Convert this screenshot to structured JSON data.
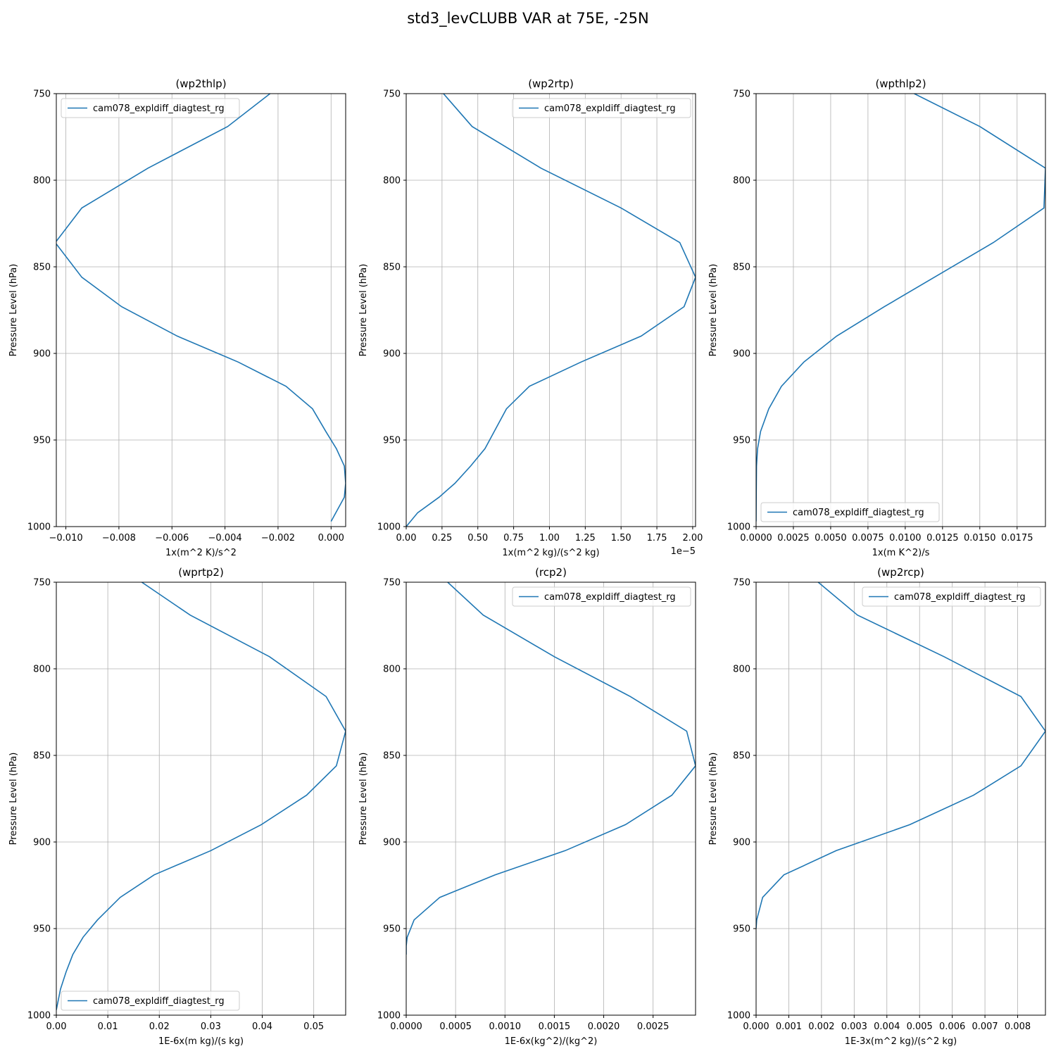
{
  "figure": {
    "title": "std3_levCLUBB VAR at 75E, -25N"
  },
  "chart_data": [
    {
      "type": "line",
      "title": "(wp2thlp)",
      "xlabel": "1x(m^2 K)/s^2",
      "ylabel": "Pressure Level (hPa)",
      "xlim": [
        -0.01036,
        0.00055
      ],
      "ylim": [
        1000,
        750
      ],
      "y_inverted": true,
      "grid": true,
      "legend_position": "upper left",
      "xticks": [
        -0.01,
        -0.008,
        -0.006,
        -0.004,
        -0.002,
        0.0
      ],
      "xtick_labels": [
        "−0.010",
        "−0.008",
        "−0.006",
        "−0.004",
        "−0.002",
        "0.000"
      ],
      "yticks": [
        750,
        800,
        850,
        900,
        950,
        1000
      ],
      "ytick_labels": [
        "750",
        "800",
        "850",
        "900",
        "950",
        "1000"
      ],
      "series": [
        {
          "name": "cam078_expldiff_diagtest_rg",
          "color": "#1f77b4",
          "x": [
            -0.0023,
            -0.0039,
            -0.0069,
            -0.0094,
            -0.0104,
            -0.0094,
            -0.0079,
            -0.0058,
            -0.0035,
            -0.0017,
            -0.0007,
            -0.0002,
            0.0002,
            0.0005,
            0.00055,
            0.0005,
            0.0
          ],
          "y": [
            750,
            769,
            793,
            816,
            836,
            856,
            873,
            890,
            905,
            919,
            932,
            945,
            955,
            965,
            975,
            983,
            997
          ]
        }
      ]
    },
    {
      "type": "line",
      "title": "(wp2rtp)",
      "xlabel": "1x(m^2 kg)/(s^2 kg)",
      "ylabel": "Pressure Level (hPa)",
      "x_offset_label": "1e−5",
      "xlim": [
        0.0,
        2.02
      ],
      "ylim": [
        1000,
        750
      ],
      "y_inverted": true,
      "grid": true,
      "legend_position": "upper right",
      "xticks": [
        0.0,
        0.25,
        0.5,
        0.75,
        1.0,
        1.25,
        1.5,
        1.75,
        2.0
      ],
      "xtick_labels": [
        "0.00",
        "0.25",
        "0.50",
        "0.75",
        "1.00",
        "1.25",
        "1.50",
        "1.75",
        "2.00"
      ],
      "yticks": [
        750,
        800,
        850,
        900,
        950,
        1000
      ],
      "ytick_labels": [
        "750",
        "800",
        "850",
        "900",
        "950",
        "1000"
      ],
      "series": [
        {
          "name": "cam078_expldiff_diagtest_rg",
          "color": "#1f77b4",
          "x": [
            0.26,
            0.46,
            0.94,
            1.5,
            1.91,
            2.02,
            1.94,
            1.64,
            1.22,
            0.86,
            0.7,
            0.55,
            0.45,
            0.34,
            0.23,
            0.08,
            0.0
          ],
          "y": [
            750,
            769,
            793,
            816,
            836,
            856,
            873,
            890,
            905,
            919,
            932,
            955,
            965,
            975,
            983,
            992,
            1000
          ]
        }
      ]
    },
    {
      "type": "line",
      "title": "(wpthlp2)",
      "xlabel": "1x(m K^2)/s",
      "ylabel": "Pressure Level (hPa)",
      "xlim": [
        0.0,
        0.0194
      ],
      "ylim": [
        1000,
        750
      ],
      "y_inverted": true,
      "grid": true,
      "legend_position": "lower left",
      "xticks": [
        0.0,
        0.0025,
        0.005,
        0.0075,
        0.01,
        0.0125,
        0.015,
        0.0175
      ],
      "xtick_labels": [
        "0.0000",
        "0.0025",
        "0.0050",
        "0.0075",
        "0.0100",
        "0.0125",
        "0.0150",
        "0.0175"
      ],
      "yticks": [
        750,
        800,
        850,
        900,
        950,
        1000
      ],
      "ytick_labels": [
        "750",
        "800",
        "850",
        "900",
        "950",
        "1000"
      ],
      "series": [
        {
          "name": "cam078_expldiff_diagtest_rg",
          "color": "#1f77b4",
          "x": [
            0.0106,
            0.015,
            0.0194,
            0.0193,
            0.0159,
            0.0086,
            0.0054,
            0.0032,
            0.0017,
            0.00085,
            0.0003,
            0.0001,
            3e-05,
            1e-05,
            0.0
          ],
          "y": [
            750,
            769,
            793,
            816,
            836,
            873,
            890,
            905,
            919,
            932,
            945,
            955,
            965,
            983,
            997
          ]
        }
      ]
    },
    {
      "type": "line",
      "title": "(wprtp2)",
      "xlabel": "1E-6x(m kg)/(s kg)",
      "ylabel": "Pressure Level (hPa)",
      "xlim": [
        0.0,
        0.0562
      ],
      "ylim": [
        1000,
        750
      ],
      "y_inverted": true,
      "grid": true,
      "legend_position": "lower left",
      "xticks": [
        0.0,
        0.01,
        0.02,
        0.03,
        0.04,
        0.05
      ],
      "xtick_labels": [
        "0.00",
        "0.01",
        "0.02",
        "0.03",
        "0.04",
        "0.05"
      ],
      "yticks": [
        750,
        800,
        850,
        900,
        950,
        1000
      ],
      "ytick_labels": [
        "750",
        "800",
        "850",
        "900",
        "950",
        "1000"
      ],
      "series": [
        {
          "name": "cam078_expldiff_diagtest_rg",
          "color": "#1f77b4",
          "x": [
            0.0166,
            0.026,
            0.0414,
            0.0524,
            0.0562,
            0.0544,
            0.0486,
            0.0398,
            0.03,
            0.019,
            0.0124,
            0.008,
            0.0052,
            0.0032,
            0.0019,
            0.0008,
            0.0
          ],
          "y": [
            750,
            769,
            793,
            816,
            836,
            856,
            873,
            890,
            905,
            919,
            932,
            945,
            955,
            965,
            975,
            985,
            997
          ]
        }
      ]
    },
    {
      "type": "line",
      "title": "(rcp2)",
      "xlabel": "1E-6x(kg^2)/(kg^2)",
      "ylabel": "Pressure Level (hPa)",
      "xlim": [
        0.0,
        0.00293
      ],
      "ylim": [
        1000,
        750
      ],
      "y_inverted": true,
      "grid": true,
      "legend_position": "upper right",
      "xticks": [
        0.0,
        0.0005,
        0.001,
        0.0015,
        0.002,
        0.0025
      ],
      "xtick_labels": [
        "0.0000",
        "0.0005",
        "0.0010",
        "0.0015",
        "0.0020",
        "0.0025"
      ],
      "yticks": [
        750,
        800,
        850,
        900,
        950,
        1000
      ],
      "ytick_labels": [
        "750",
        "800",
        "850",
        "900",
        "950",
        "1000"
      ],
      "series": [
        {
          "name": "cam078_expldiff_diagtest_rg",
          "color": "#1f77b4",
          "x": [
            0.00042,
            0.00078,
            0.0015,
            0.00227,
            0.00284,
            0.00293,
            0.00269,
            0.00222,
            0.00161,
            0.0009,
            0.00034,
            8e-05,
            1e-05,
            0.0,
            0.0
          ],
          "y": [
            750,
            769,
            793,
            816,
            836,
            856,
            873,
            890,
            905,
            919,
            932,
            945,
            955,
            960,
            965
          ]
        }
      ]
    },
    {
      "type": "line",
      "title": "(wp2rcp)",
      "xlabel": "1E-3x(m^2 kg)/(s^2 kg)",
      "ylabel": "Pressure Level (hPa)",
      "xlim": [
        0.0,
        0.00885
      ],
      "ylim": [
        1000,
        750
      ],
      "y_inverted": true,
      "grid": true,
      "legend_position": "upper right",
      "xticks": [
        0.0,
        0.001,
        0.002,
        0.003,
        0.004,
        0.005,
        0.006,
        0.007,
        0.008
      ],
      "xtick_labels": [
        "0.000",
        "0.001",
        "0.002",
        "0.003",
        "0.004",
        "0.005",
        "0.006",
        "0.007",
        "0.008"
      ],
      "yticks": [
        750,
        800,
        850,
        900,
        950,
        1000
      ],
      "ytick_labels": [
        "750",
        "800",
        "850",
        "900",
        "950",
        "1000"
      ],
      "series": [
        {
          "name": "cam078_expldiff_diagtest_rg",
          "color": "#1f77b4",
          "x": [
            0.0019,
            0.0031,
            0.00575,
            0.0081,
            0.00885,
            0.0081,
            0.00665,
            0.0047,
            0.00245,
            0.00085,
            0.0002,
            2e-05,
            0.0
          ],
          "y": [
            750,
            769,
            793,
            816,
            836,
            856,
            873,
            890,
            905,
            919,
            932,
            945,
            950
          ]
        }
      ]
    }
  ]
}
